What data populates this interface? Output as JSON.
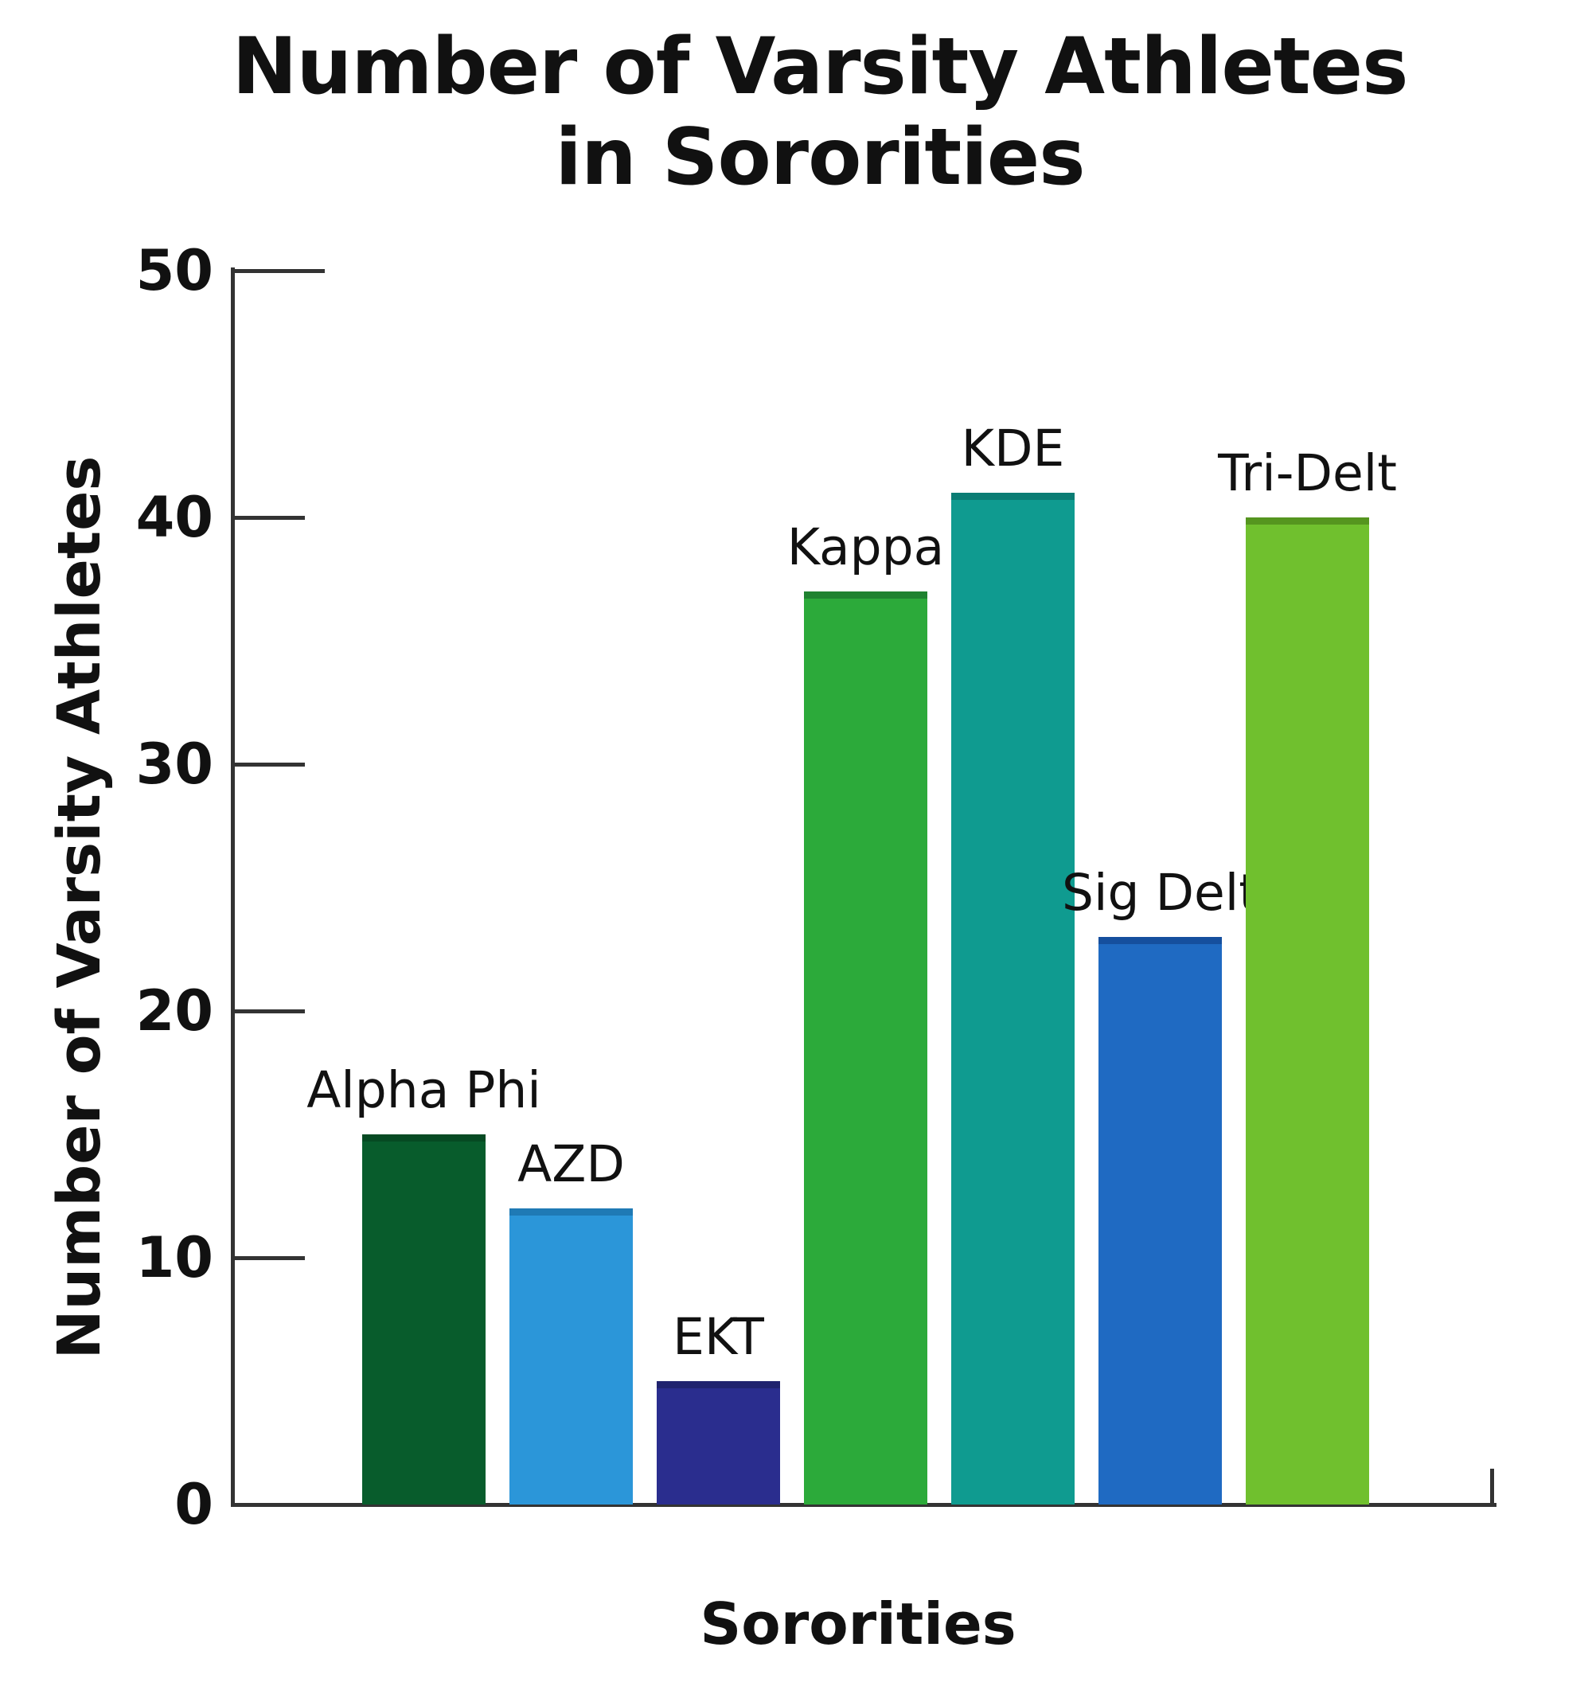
{
  "title": {
    "line1": "Number of Varsity Athletes",
    "line2": "in Sororities"
  },
  "chart_data": {
    "type": "bar",
    "title": "Number of Varsity Athletes in Sororities",
    "xlabel": "Sororities",
    "ylabel": "Number of Varsity Athletes",
    "ylim": [
      0,
      50
    ],
    "yticks": [
      0,
      10,
      20,
      30,
      40,
      50
    ],
    "grid": false,
    "legend_position": "none",
    "categories": [
      "Alpha Phi",
      "AZD",
      "EKT",
      "Kappa",
      "KDE",
      "Sig Delt",
      "Tri-Delt"
    ],
    "values": [
      15,
      12,
      5,
      37,
      41,
      23,
      40
    ],
    "bar_colors": [
      "#085c2c",
      "#2b96d9",
      "#2a2d8e",
      "#2caa3a",
      "#0f9b90",
      "#1f6ac2",
      "#70c02e"
    ],
    "bar_cap_colors": [
      "#064a23",
      "#1f7ab5",
      "#20236e",
      "#1f8230",
      "#0b7d74",
      "#154f9e",
      "#55951f"
    ],
    "axis_color": "#333333",
    "text_color": "#111111"
  }
}
